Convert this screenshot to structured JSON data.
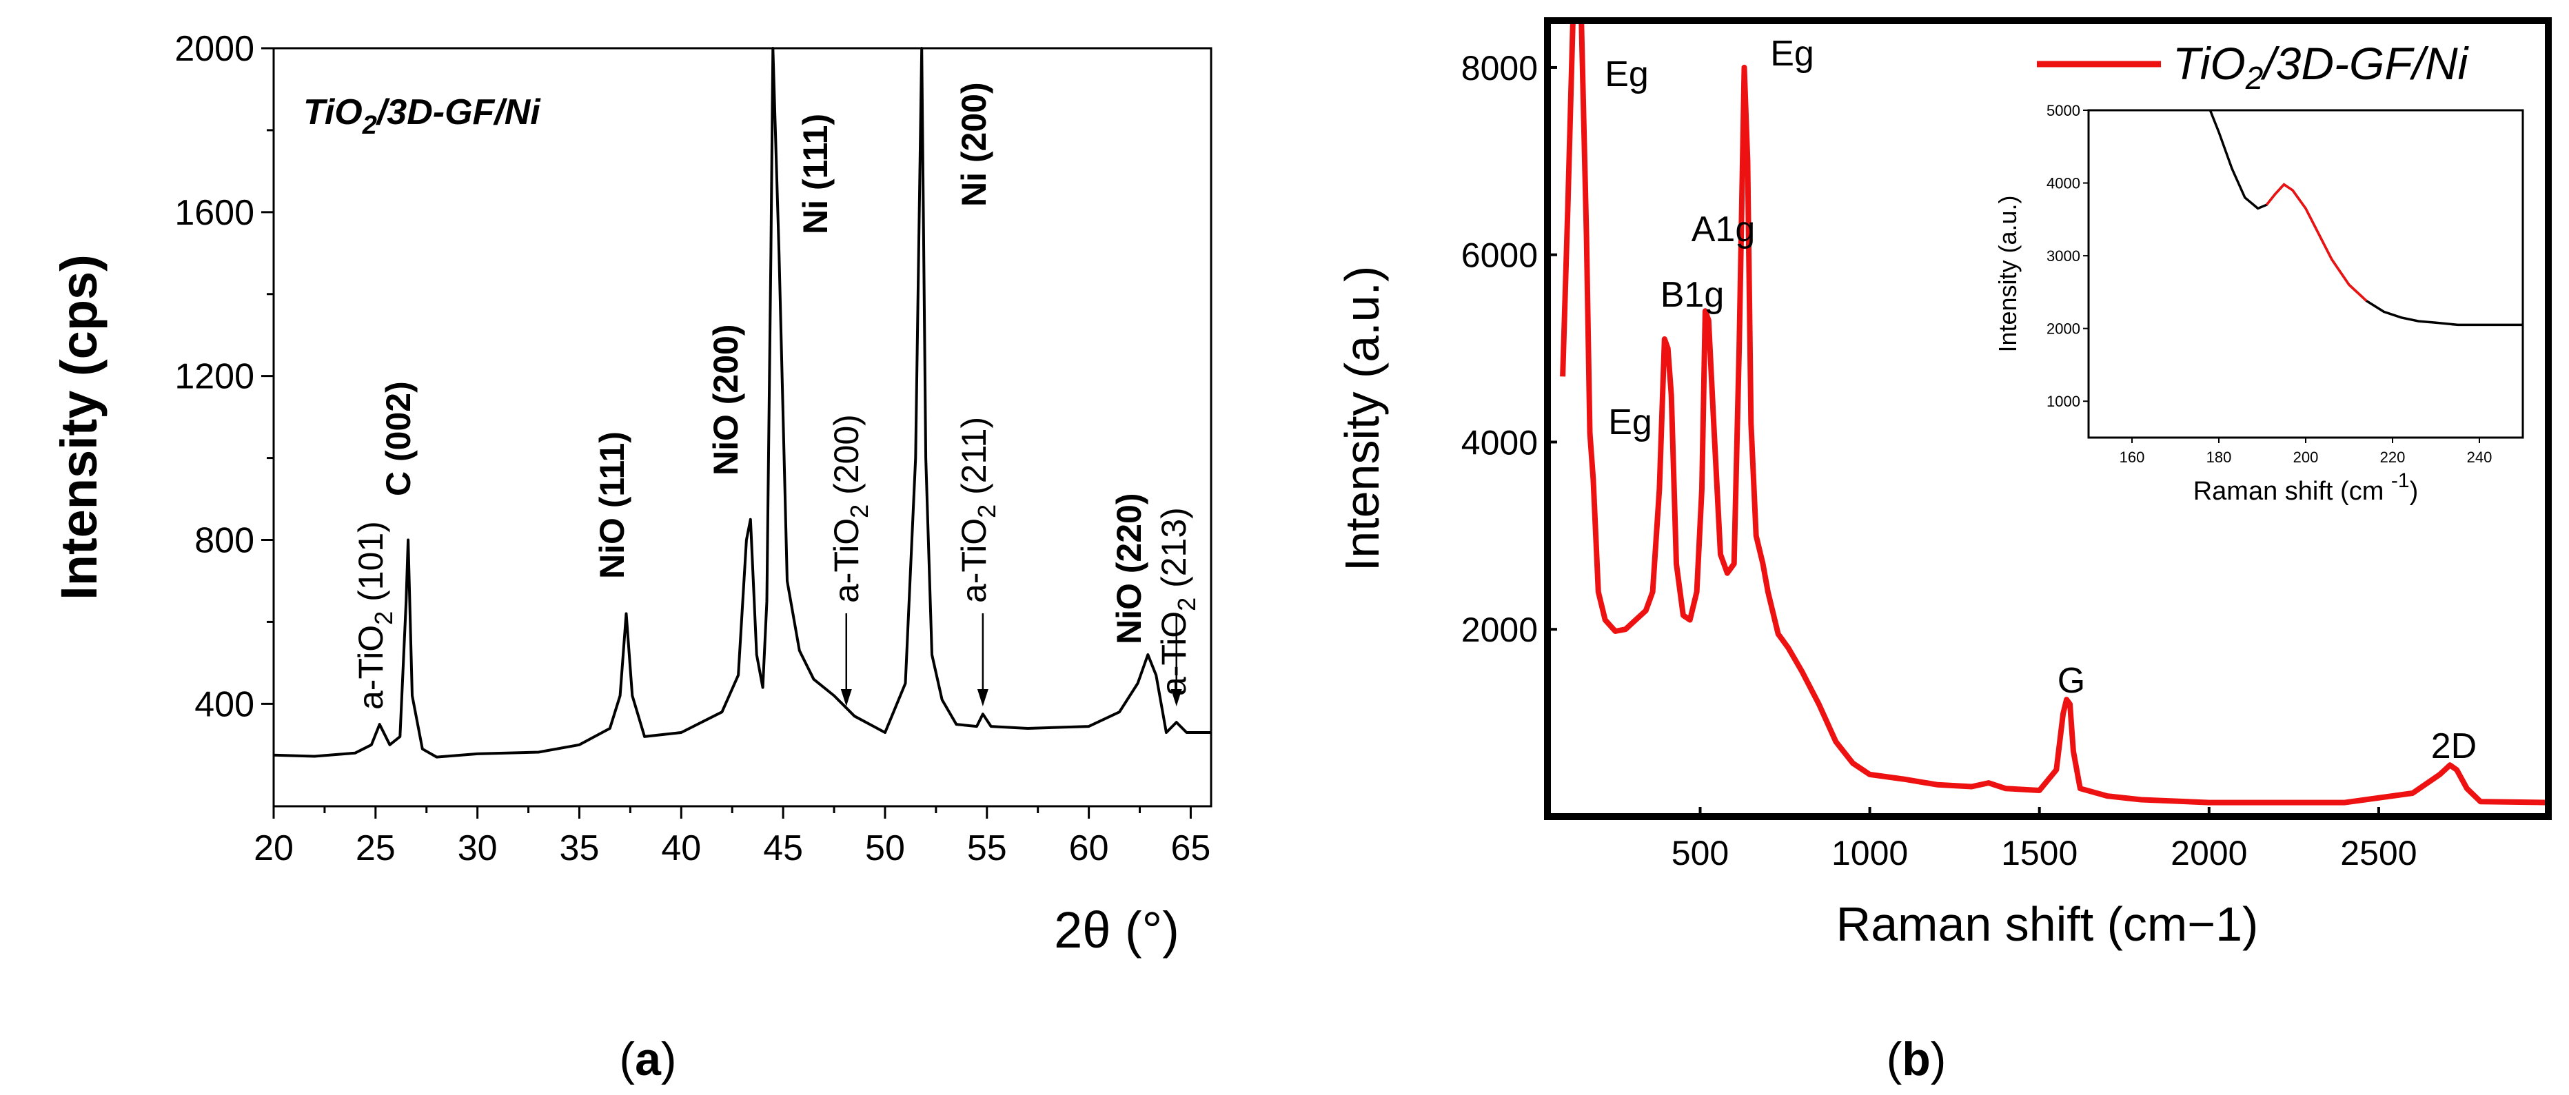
{
  "colors": {
    "xrd_line": "#000000",
    "raman_line": "#ee1111",
    "frame": "#000000"
  },
  "panel_a": {
    "caption": "(a)",
    "caption_letter": "a",
    "title": "TiO2/3D-GF/Ni",
    "title_parts": [
      "TiO",
      "2",
      "/3D-GF/Ni"
    ],
    "annotations": [
      {
        "main": "a-TiO",
        "sub": "2",
        "tail": " (101)",
        "x": 25.2
      },
      {
        "main": "C (002)",
        "sub": "",
        "tail": "",
        "x": 26.6
      },
      {
        "main": "NiO (111)",
        "sub": "",
        "tail": "",
        "x": 37.3
      },
      {
        "main": "NiO (200)",
        "sub": "",
        "tail": "",
        "x": 43.3
      },
      {
        "main": "Ni (111)",
        "sub": "",
        "tail": "",
        "x": 44.5
      },
      {
        "main": "a-TiO",
        "sub": "2",
        "tail": " (200)",
        "x": 48.1,
        "arrow": true
      },
      {
        "main": "Ni (200)",
        "sub": "",
        "tail": "",
        "x": 51.8
      },
      {
        "main": "a-TiO",
        "sub": "2",
        "tail": " (211)",
        "x": 54.8,
        "arrow": true
      },
      {
        "main": "NiO (220)",
        "sub": "",
        "tail": "",
        "x": 62.9
      },
      {
        "main": "a-TiO",
        "sub": "2",
        "tail": " (213)",
        "x": 64.3,
        "arrow": true
      }
    ]
  },
  "panel_b": {
    "caption": "(b)",
    "caption_letter": "b",
    "legend_parts": [
      "TiO",
      "2",
      "/3D-GF/Ni"
    ],
    "mode_labels": [
      "Eg",
      "Eg",
      "A1g",
      "B1g",
      "Eg",
      "G",
      "2D"
    ],
    "inset": {
      "xlabel": "Raman shift (cm ",
      "xlabel_sup": "-1",
      "xlabel_close": ")",
      "ylabel": "Intensity (a.u.)",
      "xticks": [
        "160",
        "180",
        "200",
        "220",
        "240"
      ],
      "yticks": [
        "1000",
        "2000",
        "3000",
        "4000",
        "5000"
      ]
    }
  },
  "chart_data": [
    {
      "type": "line",
      "title": "TiO2/3D-GF/Ni",
      "xlabel": "2θ (°)",
      "ylabel": "Intensity (cps)",
      "xlim": [
        20,
        66
      ],
      "ylim": [
        150,
        2000
      ],
      "xticks": [
        20,
        25,
        30,
        35,
        40,
        45,
        50,
        55,
        60,
        65
      ],
      "yticks": [
        400,
        800,
        1200,
        1600,
        2000
      ],
      "series": [
        {
          "name": "TiO2/3D-GF/Ni XRD",
          "x": [
            20,
            22,
            24,
            24.8,
            25.2,
            25.7,
            26.2,
            26.5,
            26.6,
            26.8,
            27.3,
            28,
            30,
            33,
            35,
            36.5,
            37.0,
            37.3,
            37.6,
            38.2,
            40,
            42,
            42.8,
            43.2,
            43.4,
            43.7,
            44.0,
            44.2,
            44.4,
            44.5,
            44.8,
            45.2,
            45.8,
            46.5,
            47.5,
            48.1,
            48.5,
            50,
            51.0,
            51.5,
            51.8,
            52.0,
            52.3,
            52.8,
            53.5,
            54.5,
            54.8,
            55.2,
            57,
            60,
            61.5,
            62.4,
            62.9,
            63.3,
            63.8,
            64.3,
            64.8,
            66
          ],
          "y": [
            275,
            272,
            280,
            300,
            350,
            300,
            320,
            650,
            800,
            420,
            290,
            270,
            278,
            282,
            300,
            340,
            420,
            620,
            420,
            320,
            330,
            380,
            470,
            800,
            850,
            520,
            440,
            650,
            1500,
            2000,
            1500,
            700,
            530,
            460,
            420,
            390,
            370,
            330,
            450,
            1000,
            2000,
            1000,
            520,
            410,
            350,
            345,
            375,
            345,
            340,
            345,
            380,
            450,
            520,
            470,
            330,
            355,
            330,
            330
          ]
        }
      ]
    },
    {
      "type": "line",
      "title": "",
      "xlabel": "Raman shift (cm−1)",
      "ylabel": "Intensity (a.u.)",
      "xlim": [
        50,
        3000
      ],
      "ylim": [
        0,
        8500
      ],
      "xticks": [
        500,
        1000,
        1500,
        2000,
        2500
      ],
      "yticks": [
        2000,
        4000,
        6000,
        8000
      ],
      "legend": "top-right",
      "series": [
        {
          "name": "TiO2/3D-GF/Ni",
          "x": [
            95,
            110,
            125,
            135,
            150,
            165,
            175,
            185,
            200,
            220,
            250,
            280,
            310,
            340,
            360,
            380,
            395,
            405,
            415,
            430,
            450,
            470,
            490,
            505,
            515,
            525,
            540,
            560,
            580,
            600,
            615,
            630,
            640,
            650,
            665,
            685,
            700,
            730,
            760,
            800,
            850,
            900,
            950,
            1000,
            1100,
            1200,
            1300,
            1350,
            1400,
            1500,
            1550,
            1570,
            1580,
            1590,
            1600,
            1620,
            1700,
            1800,
            2000,
            2200,
            2400,
            2600,
            2680,
            2710,
            2730,
            2760,
            2800,
            3000
          ],
          "y": [
            4700,
            6500,
            8500,
            8500,
            8500,
            6200,
            4100,
            3600,
            2400,
            2100,
            1980,
            2000,
            2100,
            2200,
            2400,
            3500,
            5100,
            5000,
            4500,
            2700,
            2150,
            2100,
            2400,
            3500,
            5400,
            5300,
            4200,
            2800,
            2600,
            2700,
            5000,
            8000,
            7000,
            4200,
            3000,
            2700,
            2400,
            1950,
            1800,
            1550,
            1200,
            800,
            570,
            450,
            400,
            340,
            320,
            360,
            300,
            280,
            500,
            1100,
            1250,
            1200,
            700,
            300,
            220,
            180,
            150,
            150,
            150,
            250,
            450,
            550,
            500,
            300,
            160,
            150
          ]
        }
      ]
    },
    {
      "type": "line",
      "title": "",
      "xlabel": "Raman shift (cm−1)",
      "ylabel": "Intensity (a.u.)",
      "xlim": [
        150,
        250
      ],
      "ylim": [
        500,
        5000
      ],
      "xticks": [
        160,
        180,
        200,
        220,
        240
      ],
      "yticks": [
        1000,
        2000,
        3000,
        4000,
        5000
      ],
      "series": [
        {
          "name": "inset",
          "x": [
            178,
            180,
            183,
            186,
            189,
            191,
            193,
            195,
            197,
            200,
            203,
            206,
            210,
            214,
            218,
            222,
            226,
            230,
            235,
            240,
            245,
            250
          ],
          "y": [
            5000,
            4700,
            4200,
            3800,
            3650,
            3700,
            3850,
            3980,
            3900,
            3650,
            3300,
            2950,
            2600,
            2380,
            2230,
            2150,
            2100,
            2080,
            2050,
            2050,
            2050,
            2050
          ]
        }
      ]
    }
  ]
}
